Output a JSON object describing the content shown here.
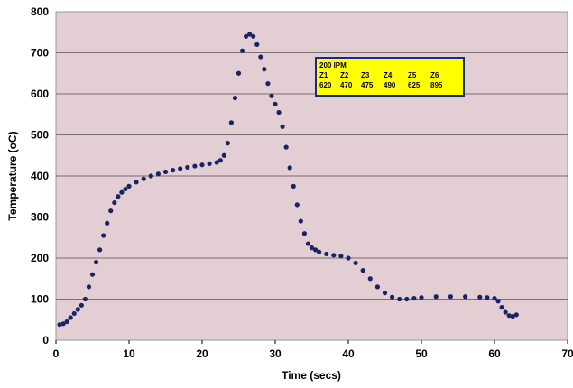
{
  "chart_data": {
    "type": "scatter",
    "title": "",
    "xlabel": "Time (secs)",
    "ylabel": "Temperature (oC)",
    "xlim": [
      0,
      70
    ],
    "ylim": [
      0,
      800
    ],
    "xticks": [
      "0",
      "10",
      "20",
      "30",
      "40",
      "50",
      "60",
      "70"
    ],
    "yticks": [
      "0",
      "100",
      "200",
      "300",
      "400",
      "500",
      "600",
      "700",
      "800"
    ],
    "grid": "horizontal",
    "legend": "none",
    "annotation": {
      "title": "200 IPM",
      "zones": [
        "Z1",
        "Z2",
        "Z3",
        "Z4",
        "Z5",
        "Z6"
      ],
      "temps": [
        "620",
        "470",
        "475",
        "490",
        "625",
        "895"
      ],
      "background": "#ffff00"
    },
    "series": [
      {
        "marker_color": "#1a2366",
        "x": [
          0.5,
          1,
          1.5,
          2,
          2.5,
          3,
          3.5,
          4,
          4.5,
          5,
          5.5,
          6,
          6.5,
          7,
          7.5,
          8,
          8.5,
          9,
          9.5,
          10,
          11,
          12,
          13,
          14,
          15,
          16,
          17,
          18,
          19,
          20,
          21,
          22,
          22.5,
          23,
          23.5,
          24,
          24.5,
          25,
          25.5,
          26,
          26.5,
          27,
          27.5,
          28,
          28.5,
          29,
          29.5,
          30,
          30.5,
          31,
          31.5,
          32,
          32.5,
          33,
          33.5,
          34,
          34.5,
          35,
          35.5,
          36,
          37,
          38,
          39,
          40,
          41,
          42,
          43,
          44,
          45,
          46,
          47,
          48,
          49,
          50,
          52,
          54,
          56,
          58,
          59,
          60,
          60.5,
          61,
          61.5,
          62,
          62.5,
          63
        ],
        "y": [
          38,
          40,
          45,
          55,
          65,
          75,
          85,
          100,
          130,
          160,
          190,
          220,
          255,
          285,
          315,
          335,
          350,
          360,
          368,
          375,
          385,
          393,
          400,
          405,
          410,
          414,
          418,
          421,
          424,
          427,
          430,
          433,
          438,
          450,
          480,
          530,
          590,
          650,
          705,
          740,
          745,
          740,
          720,
          690,
          660,
          625,
          595,
          575,
          555,
          520,
          470,
          420,
          375,
          330,
          290,
          260,
          235,
          225,
          220,
          215,
          210,
          207,
          205,
          200,
          188,
          170,
          150,
          130,
          115,
          105,
          100,
          100,
          102,
          104,
          106,
          106,
          106,
          105,
          104,
          102,
          95,
          80,
          68,
          60,
          58,
          62
        ]
      }
    ]
  },
  "colors": {
    "plot_background": "#e2ced3",
    "gridline": "#7a6f71",
    "marker": "#1a2366",
    "legend_background": "#ffff00"
  }
}
